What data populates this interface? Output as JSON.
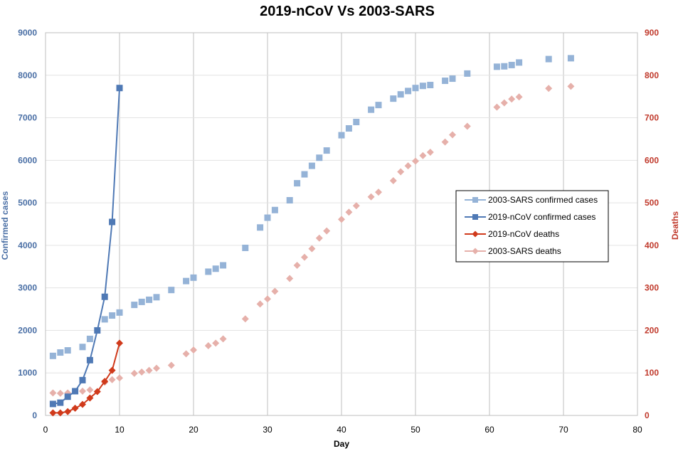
{
  "chart_data": {
    "type": "scatter",
    "title": "2019-nCoV Vs 2003-SARS",
    "xlabel": "Day",
    "ylabel_left": "Confirmed cases",
    "ylabel_right": "Deaths",
    "xlim": [
      0,
      80
    ],
    "ylim_left": [
      0,
      9000
    ],
    "ylim_right": [
      0,
      900
    ],
    "x_ticks": [
      "0",
      "10",
      "20",
      "30",
      "40",
      "50",
      "60",
      "70",
      "80"
    ],
    "y_left_ticks": [
      "0",
      "1000",
      "2000",
      "3000",
      "4000",
      "5000",
      "6000",
      "7000",
      "8000",
      "9000"
    ],
    "y_right_ticks": [
      "0",
      "100",
      "200",
      "300",
      "400",
      "500",
      "600",
      "700",
      "800",
      "900"
    ],
    "grid": true,
    "legend_position": "right",
    "series": [
      {
        "name": "2003-SARS confirmed cases",
        "axis": "left",
        "color": "#95b3d7",
        "marker": "square",
        "line": false,
        "x": [
          1,
          2,
          3,
          5,
          6,
          8,
          9,
          10,
          12,
          13,
          14,
          15,
          17,
          19,
          20,
          22,
          23,
          24,
          27,
          29,
          30,
          31,
          33,
          34,
          35,
          36,
          37,
          38,
          40,
          41,
          42,
          44,
          45,
          47,
          48,
          49,
          50,
          51,
          52,
          54,
          55,
          57,
          61,
          62,
          63,
          64,
          68,
          71
        ],
        "y": [
          1400,
          1480,
          1530,
          1610,
          1800,
          2260,
          2350,
          2420,
          2600,
          2670,
          2720,
          2780,
          2950,
          3160,
          3240,
          3380,
          3450,
          3530,
          3940,
          4420,
          4650,
          4830,
          5060,
          5460,
          5670,
          5870,
          6060,
          6230,
          6590,
          6750,
          6900,
          7190,
          7300,
          7450,
          7550,
          7630,
          7700,
          7750,
          7770,
          7870,
          7920,
          8040,
          8200,
          8210,
          8240,
          8300,
          8380,
          8400
        ]
      },
      {
        "name": "2019-nCoV confirmed cases",
        "axis": "left",
        "color": "#4f79b5",
        "marker": "square",
        "line": true,
        "x": [
          1,
          2,
          3,
          4,
          5,
          6,
          7,
          8,
          9,
          10
        ],
        "y": [
          270,
          300,
          440,
          570,
          830,
          1300,
          2000,
          2790,
          4550,
          7700
        ]
      },
      {
        "name": "2019-nCoV deaths",
        "axis": "right",
        "color": "#d03a1b",
        "marker": "diamond",
        "line": true,
        "x": [
          1,
          2,
          3,
          4,
          5,
          6,
          7,
          8,
          9,
          10
        ],
        "y": [
          6,
          6,
          9,
          17,
          26,
          41,
          56,
          80,
          106,
          170
        ]
      },
      {
        "name": "2003-SARS deaths",
        "axis": "right",
        "color": "#e6b0aa",
        "marker": "diamond",
        "line": false,
        "x": [
          1,
          2,
          3,
          5,
          6,
          8,
          9,
          10,
          12,
          13,
          14,
          15,
          17,
          19,
          20,
          22,
          23,
          24,
          27,
          29,
          30,
          31,
          33,
          34,
          35,
          36,
          37,
          38,
          40,
          41,
          42,
          44,
          45,
          47,
          48,
          49,
          50,
          51,
          52,
          54,
          55,
          57,
          61,
          62,
          63,
          64,
          68,
          71
        ],
        "y": [
          53,
          52,
          53,
          57,
          60,
          78,
          84,
          88,
          99,
          102,
          106,
          111,
          118,
          145,
          154,
          164,
          170,
          180,
          227,
          262,
          274,
          292,
          322,
          353,
          372,
          392,
          417,
          434,
          461,
          478,
          493,
          514,
          525,
          552,
          573,
          587,
          598,
          611,
          619,
          643,
          660,
          680,
          725,
          735,
          744,
          749,
          769,
          774
        ]
      }
    ],
    "legend_order": [
      "2003-SARS confirmed cases",
      "2019-nCoV confirmed cases",
      "2019-nCoV deaths",
      "2003-SARS deaths"
    ]
  }
}
